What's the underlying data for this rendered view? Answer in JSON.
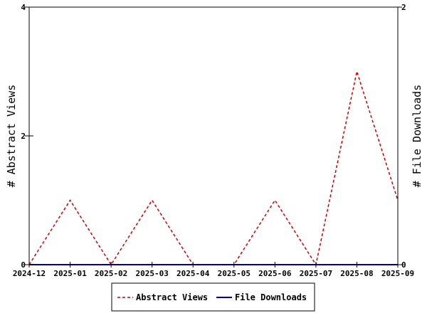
{
  "chart_data": {
    "type": "line",
    "x": [
      "2024-12",
      "2025-01",
      "2025-02",
      "2025-03",
      "2025-04",
      "2025-05",
      "2025-06",
      "2025-07",
      "2025-08",
      "2025-09"
    ],
    "series": [
      {
        "name": "Abstract Views",
        "axis": "left",
        "color": "#cc0000",
        "line_style": "dashed",
        "values": [
          0,
          1,
          0,
          1,
          0,
          0,
          1,
          0,
          3,
          1
        ]
      },
      {
        "name": "File Downloads",
        "axis": "right",
        "color": "#000099",
        "line_style": "solid",
        "values": [
          0,
          0,
          0,
          0,
          0,
          0,
          0,
          0,
          0,
          0
        ]
      }
    ],
    "title": "",
    "xlabel": "",
    "ylabel": "# Abstract Views",
    "y2label": "# File Downloads",
    "ylim": [
      0,
      4
    ],
    "y2lim": [
      0,
      2
    ],
    "yticks": [
      "0",
      "2",
      "4"
    ],
    "y2ticks": [
      "0",
      "2"
    ],
    "grid": false,
    "legend_placement": "bottom-center"
  }
}
